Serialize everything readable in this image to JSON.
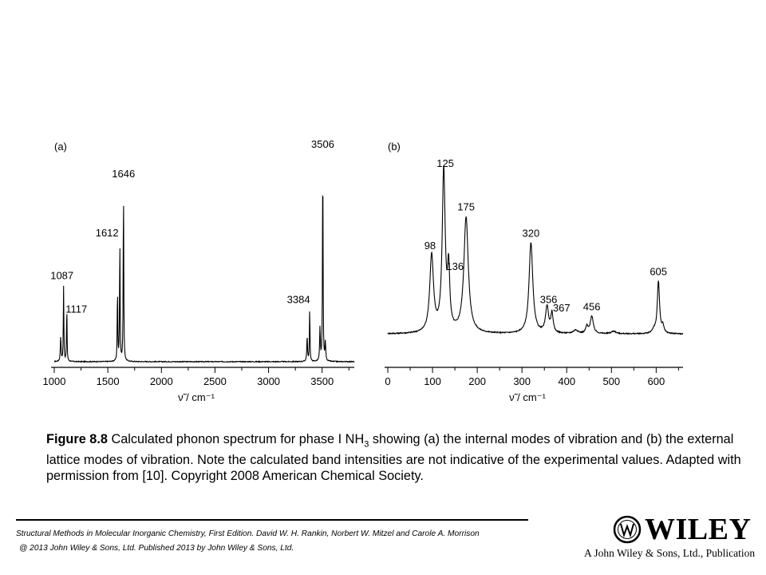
{
  "caption": {
    "figure_label": "Figure 8.8",
    "text_before_formula": " Calculated phonon spectrum for phase I NH",
    "formula_subscript": "3",
    "text_after_formula": " showing (a) the internal modes of vibration and (b) the external lattice modes of vibration. Note the calculated band intensities are not indicative of the experimental values. Adapted with permission from [10]. Copyright 2008 American Chemical Society."
  },
  "credits": {
    "line1": "Structural Methods in Molecular Inorganic Chemistry, First Edition. David W. H. Rankin, Norbert W. Mitzel and Carole A. Morrison",
    "line2": "@ 2013 John Wiley & Sons, Ltd. Published 2013 by John Wiley & Sons, Ltd."
  },
  "logo": {
    "wordmark": "WILEY",
    "tagline": "A John Wiley & Sons, Ltd., Publication"
  },
  "colors": {
    "line": "#000000",
    "background": "#ffffff"
  },
  "chart_data": [
    {
      "type": "line",
      "panel_label": "(a)",
      "xlabel": "ν̃ / cm⁻¹",
      "xlim": [
        1000,
        3800
      ],
      "xticks": [
        1000,
        1500,
        2000,
        2500,
        3000,
        3500
      ],
      "xtick_labels": [
        "1000",
        "1500",
        "2000",
        "2500",
        "3000",
        "3500"
      ],
      "ylim": [
        0,
        1
      ],
      "baseline": 0.012,
      "noise": 0.004,
      "peaks": [
        {
          "x": 1060,
          "height": 0.12,
          "width": 4
        },
        {
          "x": 1087,
          "height": 0.36,
          "width": 3,
          "label": "1087"
        },
        {
          "x": 1117,
          "height": 0.26,
          "width": 3,
          "label": "1117"
        },
        {
          "x": 1590,
          "height": 0.34,
          "width": 3
        },
        {
          "x": 1612,
          "height": 0.58,
          "width": 3,
          "label": "1612"
        },
        {
          "x": 1646,
          "height": 0.85,
          "width": 3,
          "label": "1646"
        },
        {
          "x": 3360,
          "height": 0.12,
          "width": 4
        },
        {
          "x": 3384,
          "height": 0.26,
          "width": 3,
          "label": "3384"
        },
        {
          "x": 3480,
          "height": 0.16,
          "width": 4
        },
        {
          "x": 3506,
          "height": 1.0,
          "width": 3,
          "label": "3506"
        },
        {
          "x": 3530,
          "height": 0.09,
          "width": 4
        }
      ]
    },
    {
      "type": "line",
      "panel_label": "(b)",
      "xlabel": "ν̃ / cm⁻¹",
      "xlim": [
        0,
        660
      ],
      "xticks": [
        0,
        100,
        200,
        300,
        400,
        500,
        600
      ],
      "xtick_labels": [
        "0",
        "100",
        "200",
        "300",
        "400",
        "500",
        "600"
      ],
      "ylim": [
        0,
        1
      ],
      "baseline": 0.04,
      "noise": 0.006,
      "peaks": [
        {
          "x": 98,
          "height": 0.44,
          "width": 5,
          "label": "98"
        },
        {
          "x": 125,
          "height": 0.92,
          "width": 4,
          "label": "125"
        },
        {
          "x": 136,
          "height": 0.33,
          "width": 3,
          "label": "136"
        },
        {
          "x": 175,
          "height": 0.66,
          "width": 6,
          "label": "175"
        },
        {
          "x": 320,
          "height": 0.52,
          "width": 5,
          "label": "320"
        },
        {
          "x": 356,
          "height": 0.15,
          "width": 4,
          "label": "356"
        },
        {
          "x": 367,
          "height": 0.11,
          "width": 3,
          "label": "367"
        },
        {
          "x": 420,
          "height": 0.02,
          "width": 6
        },
        {
          "x": 445,
          "height": 0.04,
          "width": 3
        },
        {
          "x": 456,
          "height": 0.1,
          "width": 4,
          "label": "456"
        },
        {
          "x": 505,
          "height": 0.015,
          "width": 6
        },
        {
          "x": 595,
          "height": 0.02,
          "width": 4
        },
        {
          "x": 605,
          "height": 0.3,
          "width": 3,
          "label": "605"
        },
        {
          "x": 615,
          "height": 0.04,
          "width": 3
        }
      ]
    }
  ]
}
